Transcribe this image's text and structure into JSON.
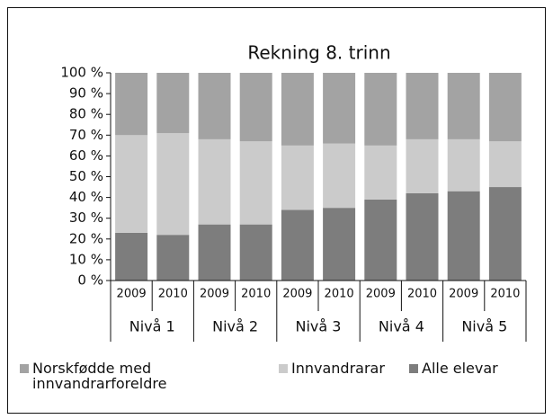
{
  "chart_data": {
    "type": "stacked_bar",
    "title": "Rekning 8. trinn",
    "categories": [
      "2009",
      "2010",
      "2009",
      "2010",
      "2009",
      "2010",
      "2009",
      "2010",
      "2009",
      "2010"
    ],
    "category_groups": [
      "Nivå 1",
      "Nivå 2",
      "Nivå 3",
      "Nivå 4",
      "Nivå 5"
    ],
    "series": [
      {
        "name": "Norskfødde med innvandrarforeldre",
        "color": "#a3a3a3",
        "values": [
          30,
          29,
          32,
          33,
          35,
          34,
          35,
          32,
          32,
          33
        ]
      },
      {
        "name": "Innvandrarar",
        "color": "#cbcbcb",
        "values": [
          47,
          49,
          41,
          40,
          31,
          31,
          26,
          26,
          25,
          22
        ]
      },
      {
        "name": "Alle elevar",
        "color": "#7d7d7d",
        "values": [
          23,
          22,
          27,
          27,
          34,
          35,
          39,
          42,
          43,
          45
        ]
      }
    ],
    "ylim": [
      0,
      100
    ],
    "yticks": [
      {
        "value": 0,
        "label": "0 %"
      },
      {
        "value": 10,
        "label": "10 %"
      },
      {
        "value": 20,
        "label": "20 %"
      },
      {
        "value": 30,
        "label": "30 %"
      },
      {
        "value": 40,
        "label": "40 %"
      },
      {
        "value": 50,
        "label": "50 %"
      },
      {
        "value": 60,
        "label": "60 %"
      },
      {
        "value": 70,
        "label": "70 %"
      },
      {
        "value": 80,
        "label": "80 %"
      },
      {
        "value": 90,
        "label": "90 %"
      },
      {
        "value": 100,
        "label": "100 %"
      }
    ],
    "legend": "bottom"
  }
}
